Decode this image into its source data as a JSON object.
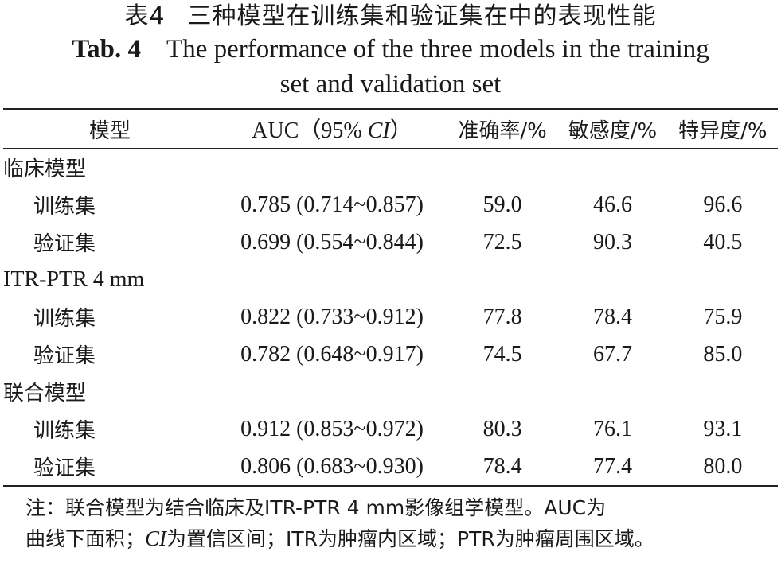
{
  "title": {
    "cn_prefix": "表4",
    "cn_text": "三种模型在训练集和验证集在中的表现性能",
    "en_prefix": "Tab. 4",
    "en_text_line1": "The performance of the three models in the training",
    "en_text_line2": "set and validation set"
  },
  "table": {
    "headers": {
      "model": "模型",
      "auc_prefix": "AUC（95% ",
      "auc_ci": "CI",
      "auc_suffix": "）",
      "accuracy": "准确率/%",
      "sensitivity": "敏感度/%",
      "specificity": "特异度/%"
    },
    "groups": [
      {
        "name": "临床模型",
        "rows": [
          {
            "set": "训练集",
            "auc": "0.785 (0.714~0.857)",
            "accuracy": "59.0",
            "sensitivity": "46.6",
            "specificity": "96.6"
          },
          {
            "set": "验证集",
            "auc": "0.699 (0.554~0.844)",
            "accuracy": "72.5",
            "sensitivity": "90.3",
            "specificity": "40.5"
          }
        ]
      },
      {
        "name": "ITR-PTR 4 mm",
        "rows": [
          {
            "set": "训练集",
            "auc": "0.822 (0.733~0.912)",
            "accuracy": "77.8",
            "sensitivity": "78.4",
            "specificity": "75.9"
          },
          {
            "set": "验证集",
            "auc": "0.782 (0.648~0.917)",
            "accuracy": "74.5",
            "sensitivity": "67.7",
            "specificity": "85.0"
          }
        ]
      },
      {
        "name": "联合模型",
        "rows": [
          {
            "set": "训练集",
            "auc": "0.912 (0.853~0.972)",
            "accuracy": "80.3",
            "sensitivity": "76.1",
            "specificity": "93.1"
          },
          {
            "set": "验证集",
            "auc": "0.806 (0.683~0.930)",
            "accuracy": "78.4",
            "sensitivity": "77.4",
            "specificity": "80.0"
          }
        ]
      }
    ]
  },
  "note": {
    "line1": "注：联合模型为结合临床及ITR-PTR 4 mm影像组学模型。AUC为",
    "line2_a": "曲线下面积；",
    "line2_ci": "CI",
    "line2_b": "为置信区间；ITR为肿瘤内区域；PTR为肿瘤周围区域。"
  }
}
